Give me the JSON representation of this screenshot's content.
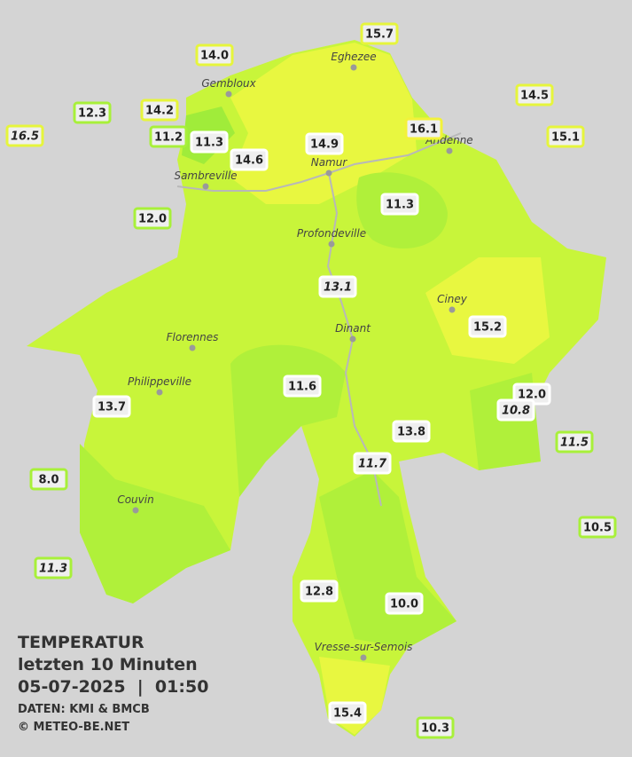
{
  "legend": {
    "title": "TEMPERATUR",
    "period": "letzten 10 Minuten",
    "datetime": "05-07-2025  |  01:50",
    "source": "DATEN: KMI & BMCB",
    "copyright": "© METEO-BE.NET"
  },
  "towns": [
    "Eghezee",
    "Gembloux",
    "Andenne",
    "Namur",
    "Sambreville",
    "Profondeville",
    "Ciney",
    "Dinant",
    "Florennes",
    "Philippeville",
    "Couvin",
    "Vresse-sur-Semois"
  ],
  "stations": [
    {
      "label": "15.7",
      "border": "#e6f53c"
    },
    {
      "label": "14.0",
      "border": "#e6f53c"
    },
    {
      "label": "14.5",
      "border": "#e6f53c"
    },
    {
      "label": "12.3",
      "border": "#a8f03a"
    },
    {
      "label": "14.2",
      "border": "#e6f53c"
    },
    {
      "label": "16.5",
      "border": "#e6f53c",
      "italic": true
    },
    {
      "label": "11.2",
      "border": "#a8f03a"
    },
    {
      "label": "11.3",
      "border": "#ffffff"
    },
    {
      "label": "16.1",
      "border": "#f2f23a"
    },
    {
      "label": "15.1",
      "border": "#e6f53c"
    },
    {
      "label": "14.9",
      "border": "#ffffff"
    },
    {
      "label": "14.6",
      "border": "#ffffff"
    },
    {
      "label": "12.0",
      "border": "#a8f03a"
    },
    {
      "label": "11.3",
      "border": "#ffffff"
    },
    {
      "label": "13.1",
      "border": "#ffffff",
      "italic": true
    },
    {
      "label": "15.2",
      "border": "#ffffff"
    },
    {
      "label": "11.6",
      "border": "#ffffff"
    },
    {
      "label": "12.0",
      "border": "#ffffff"
    },
    {
      "label": "10.8",
      "border": "#ffffff",
      "italic": true
    },
    {
      "label": "13.7",
      "border": "#ffffff"
    },
    {
      "label": "13.8",
      "border": "#ffffff"
    },
    {
      "label": "11.5",
      "border": "#a8f03a",
      "italic": true
    },
    {
      "label": "11.7",
      "border": "#ffffff",
      "italic": true
    },
    {
      "label": "8.0",
      "border": "#a8f03a"
    },
    {
      "label": "10.5",
      "border": "#a8f03a"
    },
    {
      "label": "11.3",
      "border": "#a8f03a",
      "italic": true
    },
    {
      "label": "12.8",
      "border": "#ffffff"
    },
    {
      "label": "10.0",
      "border": "#ffffff"
    },
    {
      "label": "15.4",
      "border": "#ffffff"
    },
    {
      "label": "10.3",
      "border": "#a8f03a"
    }
  ]
}
